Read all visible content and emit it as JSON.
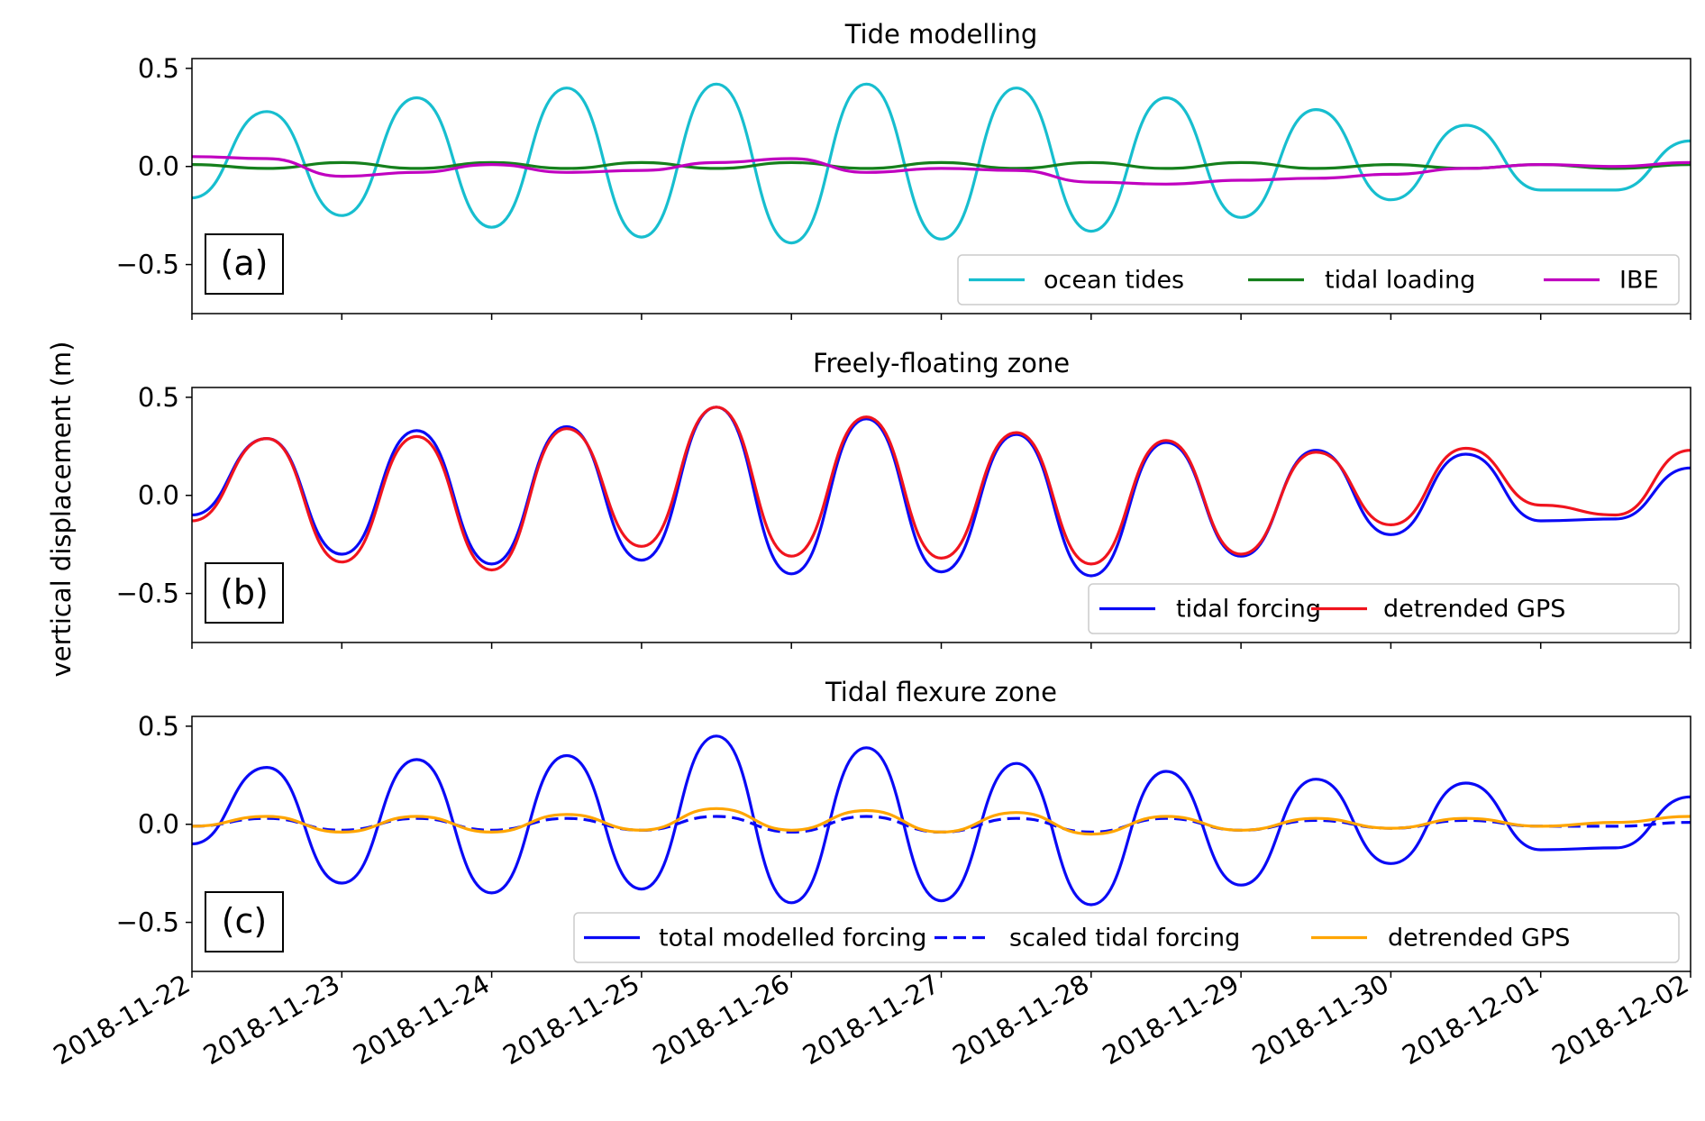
{
  "figure": {
    "ylabel": "vertical displacement (m)",
    "xticks": [
      "2018-11-22",
      "2018-11-23",
      "2018-11-24",
      "2018-11-25",
      "2018-11-26",
      "2018-11-27",
      "2018-11-28",
      "2018-11-29",
      "2018-11-30",
      "2018-12-01",
      "2018-12-02"
    ]
  },
  "chart_data": [
    {
      "type": "line",
      "title": "Tide modelling",
      "panel_label": "(a)",
      "xlim": [
        "2018-11-22",
        "2018-12-02"
      ],
      "ylim": [
        -0.75,
        0.55
      ],
      "yticks": [
        0.5,
        0.0,
        -0.5
      ],
      "ytick_labels": [
        "0.5",
        "0.0",
        "−0.5"
      ],
      "legend": "lower-right",
      "x": [
        "2018-11-22T00:00",
        "2018-11-22T12:00",
        "2018-11-23T00:00",
        "2018-11-23T12:00",
        "2018-11-24T00:00",
        "2018-11-24T12:00",
        "2018-11-25T00:00",
        "2018-11-25T12:00",
        "2018-11-26T00:00",
        "2018-11-26T12:00",
        "2018-11-27T00:00",
        "2018-11-27T12:00",
        "2018-11-28T00:00",
        "2018-11-28T12:00",
        "2018-11-29T00:00",
        "2018-11-29T12:00",
        "2018-11-30T00:00",
        "2018-11-30T12:00",
        "2018-12-01T00:00",
        "2018-12-01T12:00",
        "2018-12-02T00:00"
      ],
      "series": [
        {
          "name": "ocean tides",
          "color": "#17becf",
          "dash": "solid",
          "values": [
            -0.16,
            0.28,
            -0.25,
            0.35,
            -0.31,
            0.4,
            -0.36,
            0.42,
            -0.39,
            0.42,
            -0.37,
            0.4,
            -0.33,
            0.35,
            -0.26,
            0.29,
            -0.17,
            0.21,
            -0.12,
            -0.12,
            0.13
          ]
        },
        {
          "name": "tidal loading",
          "color": "#15801c",
          "dash": "solid",
          "values": [
            0.01,
            -0.01,
            0.02,
            -0.01,
            0.02,
            -0.01,
            0.02,
            -0.01,
            0.02,
            -0.01,
            0.02,
            -0.01,
            0.02,
            -0.01,
            0.02,
            -0.01,
            0.01,
            -0.01,
            0.01,
            -0.01,
            0.01
          ]
        },
        {
          "name": "IBE",
          "color": "#c000c0",
          "dash": "solid",
          "values": [
            0.05,
            0.04,
            -0.05,
            -0.03,
            0.01,
            -0.03,
            -0.02,
            0.02,
            0.04,
            -0.03,
            -0.01,
            -0.02,
            -0.08,
            -0.09,
            -0.07,
            -0.06,
            -0.04,
            -0.01,
            0.01,
            0.0,
            0.02
          ]
        }
      ]
    },
    {
      "type": "line",
      "title": "Freely-floating zone",
      "panel_label": "(b)",
      "xlim": [
        "2018-11-22",
        "2018-12-02"
      ],
      "ylim": [
        -0.75,
        0.55
      ],
      "yticks": [
        0.5,
        0.0,
        -0.5
      ],
      "ytick_labels": [
        "0.5",
        "0.0",
        "−0.5"
      ],
      "legend": "lower-right",
      "x": [
        "2018-11-22T00:00",
        "2018-11-22T12:00",
        "2018-11-23T00:00",
        "2018-11-23T12:00",
        "2018-11-24T00:00",
        "2018-11-24T12:00",
        "2018-11-25T00:00",
        "2018-11-25T12:00",
        "2018-11-26T00:00",
        "2018-11-26T12:00",
        "2018-11-27T00:00",
        "2018-11-27T12:00",
        "2018-11-28T00:00",
        "2018-11-28T12:00",
        "2018-11-29T00:00",
        "2018-11-29T12:00",
        "2018-11-30T00:00",
        "2018-11-30T12:00",
        "2018-12-01T00:00",
        "2018-12-01T12:00",
        "2018-12-02T00:00"
      ],
      "series": [
        {
          "name": "tidal forcing",
          "color": "#0a0af5",
          "dash": "solid",
          "values": [
            -0.1,
            0.29,
            -0.3,
            0.33,
            -0.35,
            0.35,
            -0.33,
            0.45,
            -0.4,
            0.39,
            -0.39,
            0.31,
            -0.41,
            0.27,
            -0.31,
            0.23,
            -0.2,
            0.21,
            -0.13,
            -0.12,
            0.14
          ]
        },
        {
          "name": "detrended GPS",
          "color": "#f0141e",
          "dash": "solid",
          "values": [
            -0.13,
            0.29,
            -0.34,
            0.3,
            -0.38,
            0.34,
            -0.26,
            0.45,
            -0.31,
            0.4,
            -0.32,
            0.32,
            -0.35,
            0.28,
            -0.3,
            0.22,
            -0.15,
            0.24,
            -0.05,
            -0.1,
            0.23
          ]
        }
      ]
    },
    {
      "type": "line",
      "title": "Tidal flexure zone",
      "panel_label": "(c)",
      "xlim": [
        "2018-11-22",
        "2018-12-02"
      ],
      "ylim": [
        -0.75,
        0.55
      ],
      "yticks": [
        0.5,
        0.0,
        -0.5
      ],
      "ytick_labels": [
        "0.5",
        "0.0",
        "−0.5"
      ],
      "legend": "lower-right",
      "x": [
        "2018-11-22T00:00",
        "2018-11-22T12:00",
        "2018-11-23T00:00",
        "2018-11-23T12:00",
        "2018-11-24T00:00",
        "2018-11-24T12:00",
        "2018-11-25T00:00",
        "2018-11-25T12:00",
        "2018-11-26T00:00",
        "2018-11-26T12:00",
        "2018-11-27T00:00",
        "2018-11-27T12:00",
        "2018-11-28T00:00",
        "2018-11-28T12:00",
        "2018-11-29T00:00",
        "2018-11-29T12:00",
        "2018-11-30T00:00",
        "2018-11-30T12:00",
        "2018-12-01T00:00",
        "2018-12-01T12:00",
        "2018-12-02T00:00"
      ],
      "series": [
        {
          "name": "total modelled forcing",
          "color": "#0a0af5",
          "dash": "solid",
          "values": [
            -0.1,
            0.29,
            -0.3,
            0.33,
            -0.35,
            0.35,
            -0.33,
            0.45,
            -0.4,
            0.39,
            -0.39,
            0.31,
            -0.41,
            0.27,
            -0.31,
            0.23,
            -0.2,
            0.21,
            -0.13,
            -0.12,
            0.14
          ]
        },
        {
          "name": "scaled tidal forcing",
          "color": "#0a0af5",
          "dash": "dashed",
          "values": [
            -0.01,
            0.03,
            -0.03,
            0.03,
            -0.03,
            0.03,
            -0.03,
            0.04,
            -0.04,
            0.04,
            -0.04,
            0.03,
            -0.04,
            0.03,
            -0.03,
            0.02,
            -0.02,
            0.02,
            -0.01,
            -0.01,
            0.01
          ]
        },
        {
          "name": "detrended GPS",
          "color": "#ffa500",
          "dash": "solid",
          "values": [
            -0.01,
            0.04,
            -0.04,
            0.04,
            -0.04,
            0.05,
            -0.03,
            0.08,
            -0.03,
            0.07,
            -0.04,
            0.06,
            -0.05,
            0.04,
            -0.03,
            0.03,
            -0.02,
            0.03,
            -0.01,
            0.01,
            0.04
          ]
        }
      ]
    }
  ]
}
